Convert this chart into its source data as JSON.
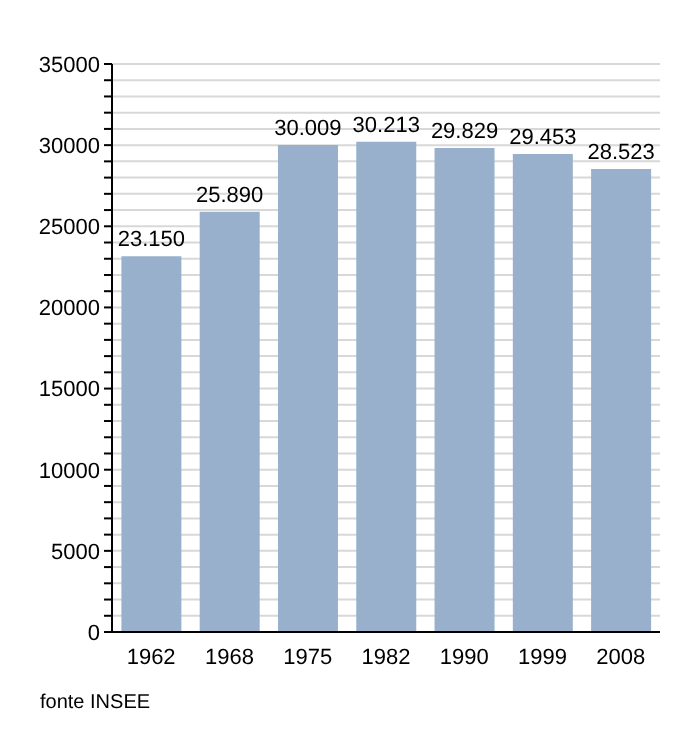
{
  "chart_data": {
    "type": "bar",
    "categories": [
      "1962",
      "1968",
      "1975",
      "1982",
      "1990",
      "1999",
      "2008"
    ],
    "values": [
      23150,
      25890,
      30009,
      30213,
      29829,
      29453,
      28523
    ],
    "value_labels": [
      "23.150",
      "25.890",
      "30.009",
      "30.213",
      "29.829",
      "29.453",
      "28.523"
    ],
    "color": "#98b0cb",
    "ylim": [
      0,
      35000
    ],
    "yticks": [
      0,
      {
        "value": 1000,
        "label": null
      },
      {
        "value": 2000,
        "label": null
      },
      {
        "value": 3000,
        "label": null
      },
      {
        "value": 4000,
        "label": null
      },
      5000,
      {
        "value": 6000,
        "label": null
      },
      {
        "value": 7000,
        "label": null
      },
      {
        "value": 8000,
        "label": null
      },
      {
        "value": 9000,
        "label": null
      },
      10000,
      {
        "value": 11000,
        "label": null
      },
      {
        "value": 12000,
        "label": null
      },
      {
        "value": 13000,
        "label": null
      },
      {
        "value": 14000,
        "label": null
      },
      15000,
      {
        "value": 16000,
        "label": null
      },
      {
        "value": 17000,
        "label": null
      },
      {
        "value": 18000,
        "label": null
      },
      {
        "value": 19000,
        "label": null
      },
      20000,
      {
        "value": 21000,
        "label": null
      },
      {
        "value": 22000,
        "label": null
      },
      {
        "value": 23000,
        "label": null
      },
      {
        "value": 24000,
        "label": null
      },
      25000,
      {
        "value": 26000,
        "label": null
      },
      {
        "value": 27000,
        "label": null
      },
      {
        "value": 28000,
        "label": null
      },
      {
        "value": 29000,
        "label": null
      },
      30000,
      {
        "value": 31000,
        "label": null
      },
      {
        "value": 32000,
        "label": null
      },
      {
        "value": 33000,
        "label": null
      },
      {
        "value": 34000,
        "label": null
      },
      35000
    ],
    "grid": "y",
    "annotations": [
      "fonte INSEE"
    ]
  }
}
